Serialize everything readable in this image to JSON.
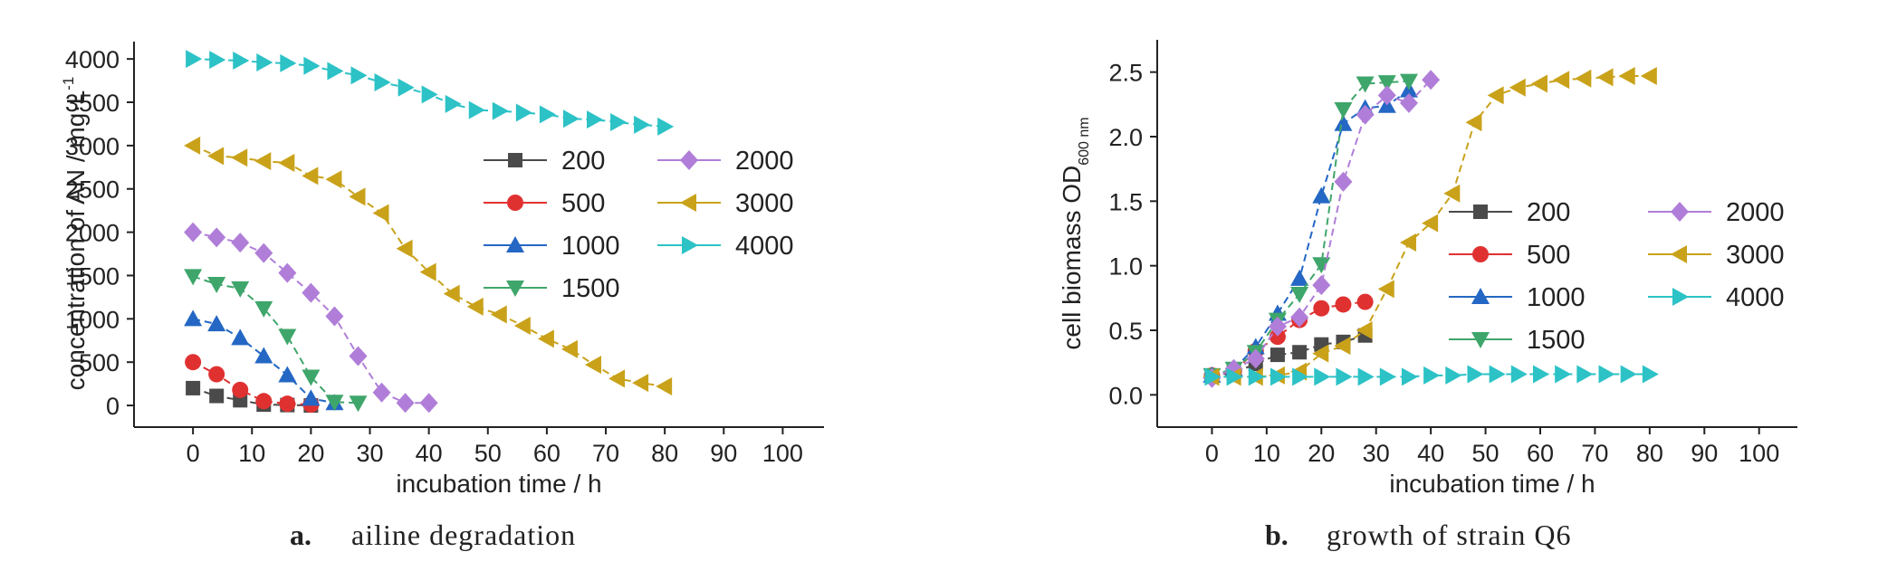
{
  "chart_data": [
    {
      "type": "line",
      "panel_letter": "a.",
      "caption": "ailine degradation",
      "xlabel": "incubation time / h",
      "ylabel": "concentration of AN / mg·L",
      "ylabel_sup": "-1",
      "xlim": [
        -10,
        107
      ],
      "ylim": [
        -250,
        4200
      ],
      "xticks": [
        0,
        10,
        20,
        30,
        40,
        50,
        60,
        70,
        80,
        90,
        100
      ],
      "yticks": [
        0,
        500,
        1000,
        1500,
        2000,
        2500,
        3000,
        3500,
        4000
      ],
      "legend_placement": "center",
      "series": [
        {
          "name": "200",
          "color": "#4a4a4a",
          "marker": "square",
          "x": [
            0,
            4,
            8,
            12,
            16,
            20
          ],
          "y": [
            200,
            110,
            60,
            10,
            5,
            0
          ]
        },
        {
          "name": "500",
          "color": "#e03131",
          "marker": "circle",
          "x": [
            0,
            4,
            8,
            12,
            16,
            20
          ],
          "y": [
            500,
            360,
            180,
            50,
            20,
            10
          ]
        },
        {
          "name": "1000",
          "color": "#2467c4",
          "marker": "triangle-up",
          "x": [
            0,
            4,
            8,
            12,
            16,
            20,
            24
          ],
          "y": [
            1000,
            940,
            780,
            570,
            350,
            80,
            30
          ]
        },
        {
          "name": "1500",
          "color": "#3fa66b",
          "marker": "triangle-down",
          "x": [
            0,
            4,
            8,
            12,
            16,
            20,
            24,
            28
          ],
          "y": [
            1490,
            1400,
            1350,
            1120,
            800,
            330,
            40,
            30
          ]
        },
        {
          "name": "2000",
          "color": "#b07ed8",
          "marker": "diamond",
          "x": [
            0,
            4,
            8,
            12,
            16,
            20,
            24,
            28,
            32,
            36,
            40
          ],
          "y": [
            2000,
            1940,
            1880,
            1760,
            1530,
            1300,
            1030,
            570,
            150,
            30,
            30
          ]
        },
        {
          "name": "3000",
          "color": "#c9a21a",
          "marker": "triangle-left",
          "x": [
            0,
            4,
            8,
            12,
            16,
            20,
            24,
            28,
            32,
            36,
            40,
            44,
            48,
            52,
            56,
            60,
            64,
            68,
            72,
            76,
            80
          ],
          "y": [
            3000,
            2880,
            2860,
            2820,
            2800,
            2650,
            2610,
            2410,
            2220,
            1810,
            1540,
            1290,
            1140,
            1050,
            920,
            770,
            650,
            470,
            310,
            260,
            220
          ]
        },
        {
          "name": "4000",
          "color": "#2cc2c6",
          "marker": "triangle-right",
          "x": [
            0,
            4,
            8,
            12,
            16,
            20,
            24,
            28,
            32,
            36,
            40,
            44,
            48,
            52,
            56,
            60,
            64,
            68,
            72,
            76,
            80
          ],
          "y": [
            4000,
            3990,
            3980,
            3960,
            3950,
            3920,
            3860,
            3810,
            3730,
            3670,
            3590,
            3480,
            3410,
            3400,
            3380,
            3360,
            3310,
            3300,
            3270,
            3240,
            3220
          ]
        }
      ]
    },
    {
      "type": "line",
      "panel_letter": "b.",
      "caption": "growth of strain Q6",
      "xlabel": "incubation time / h",
      "ylabel": "cell biomass OD",
      "ylabel_sub": "600 nm",
      "xlim": [
        -10,
        107
      ],
      "ylim": [
        -0.25,
        2.75
      ],
      "xticks": [
        0,
        10,
        20,
        30,
        40,
        50,
        60,
        70,
        80,
        90,
        100
      ],
      "yticks": [
        0.0,
        0.5,
        1.0,
        1.5,
        2.0,
        2.5
      ],
      "yticklabels": [
        "0.0",
        "0.5",
        "1.0",
        "1.5",
        "2.0",
        "2.5"
      ],
      "legend_placement": "center-right",
      "series": [
        {
          "name": "200",
          "color": "#4a4a4a",
          "marker": "square",
          "x": [
            0,
            4,
            8,
            12,
            16,
            20,
            24,
            28
          ],
          "y": [
            0.15,
            0.17,
            0.24,
            0.31,
            0.33,
            0.39,
            0.41,
            0.46
          ]
        },
        {
          "name": "500",
          "color": "#e03131",
          "marker": "circle",
          "x": [
            0,
            4,
            8,
            12,
            16,
            20,
            24,
            28
          ],
          "y": [
            0.15,
            0.18,
            0.34,
            0.45,
            0.58,
            0.67,
            0.7,
            0.72
          ]
        },
        {
          "name": "1000",
          "color": "#2467c4",
          "marker": "triangle-up",
          "x": [
            0,
            4,
            8,
            12,
            16,
            20,
            24,
            28,
            32,
            36
          ],
          "y": [
            0.15,
            0.2,
            0.37,
            0.63,
            0.9,
            1.54,
            2.1,
            2.22,
            2.24,
            2.36
          ]
        },
        {
          "name": "1500",
          "color": "#3fa66b",
          "marker": "triangle-down",
          "x": [
            0,
            4,
            8,
            12,
            16,
            20,
            24,
            28,
            32,
            36
          ],
          "y": [
            0.15,
            0.2,
            0.33,
            0.58,
            0.78,
            1.01,
            2.21,
            2.41,
            2.42,
            2.43
          ]
        },
        {
          "name": "2000",
          "color": "#b07ed8",
          "marker": "diamond",
          "x": [
            0,
            4,
            8,
            12,
            16,
            20,
            24,
            28,
            32,
            36,
            40
          ],
          "y": [
            0.13,
            0.2,
            0.28,
            0.53,
            0.6,
            0.85,
            1.65,
            2.17,
            2.32,
            2.26,
            2.44
          ]
        },
        {
          "name": "3000",
          "color": "#c9a21a",
          "marker": "triangle-left",
          "x": [
            0,
            4,
            8,
            12,
            16,
            20,
            24,
            28,
            32,
            36,
            40,
            44,
            48,
            52,
            56,
            60,
            64,
            68,
            72,
            76,
            80
          ],
          "y": [
            0.14,
            0.14,
            0.14,
            0.15,
            0.18,
            0.32,
            0.38,
            0.5,
            0.82,
            1.18,
            1.33,
            1.56,
            2.11,
            2.32,
            2.38,
            2.41,
            2.44,
            2.45,
            2.46,
            2.47,
            2.47
          ]
        },
        {
          "name": "4000",
          "color": "#2cc2c6",
          "marker": "triangle-right",
          "x": [
            0,
            4,
            8,
            12,
            16,
            20,
            24,
            28,
            32,
            36,
            40,
            44,
            48,
            52,
            56,
            60,
            64,
            68,
            72,
            76,
            80
          ],
          "y": [
            0.14,
            0.14,
            0.14,
            0.14,
            0.14,
            0.14,
            0.14,
            0.14,
            0.14,
            0.14,
            0.15,
            0.15,
            0.16,
            0.16,
            0.16,
            0.16,
            0.16,
            0.16,
            0.16,
            0.16,
            0.16
          ]
        }
      ]
    }
  ]
}
